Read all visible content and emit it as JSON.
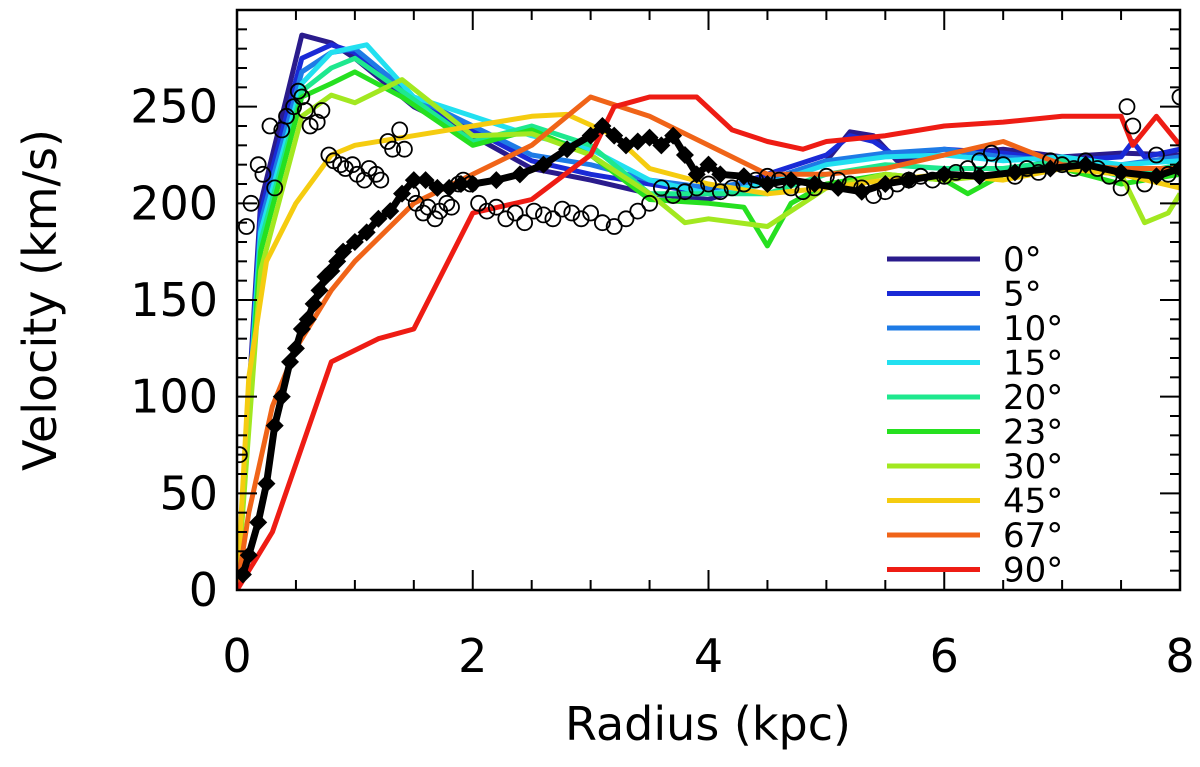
{
  "chart_data": {
    "type": "line",
    "title": "",
    "xlabel": "Radius (kpc)",
    "ylabel": "Velocity (km/s)",
    "xlim": [
      0,
      8
    ],
    "ylim": [
      0,
      300
    ],
    "x_ticks": [
      0,
      2,
      4,
      6,
      8
    ],
    "x_tick_labels": [
      "0",
      "2",
      "4",
      "6",
      "8"
    ],
    "y_ticks": [
      0,
      50,
      100,
      150,
      200,
      250
    ],
    "y_tick_labels": [
      "0",
      "50",
      "100",
      "150",
      "200",
      "250"
    ],
    "grid": false,
    "legend_position": "bottom-right",
    "series": [
      {
        "name": "0°",
        "color": "#2a1b8c",
        "x": [
          0,
          0.2,
          0.55,
          0.8,
          1.0,
          1.5,
          2.0,
          2.5,
          3.0,
          3.5,
          4.0,
          4.5,
          5.0,
          5.2,
          5.4,
          5.6,
          6.0,
          6.5,
          7.0,
          7.5,
          8.0
        ],
        "y": [
          0,
          200,
          287,
          283,
          275,
          250,
          235,
          218,
          212,
          205,
          202,
          212,
          222,
          237,
          235,
          222,
          225,
          228,
          224,
          226,
          225
        ]
      },
      {
        "name": "5°",
        "color": "#1a2ad6",
        "x": [
          0,
          0.2,
          0.55,
          0.8,
          1.0,
          1.5,
          2.0,
          2.5,
          3.0,
          3.5,
          4.0,
          4.5,
          5.0,
          5.2,
          5.4,
          5.6,
          6.0,
          6.5,
          7.0,
          7.5,
          7.6,
          7.7,
          8.0
        ],
        "y": [
          0,
          195,
          275,
          282,
          278,
          252,
          238,
          222,
          215,
          210,
          205,
          215,
          225,
          235,
          232,
          224,
          228,
          226,
          222,
          224,
          232,
          224,
          228
        ]
      },
      {
        "name": "10°",
        "color": "#1e7be6",
        "x": [
          0,
          0.2,
          0.55,
          0.8,
          1.0,
          1.5,
          2.0,
          2.5,
          3.0,
          3.5,
          4.0,
          4.5,
          5.0,
          5.5,
          6.0,
          6.5,
          7.0,
          7.5,
          8.0
        ],
        "y": [
          0,
          190,
          268,
          278,
          280,
          255,
          240,
          225,
          220,
          212,
          208,
          212,
          222,
          226,
          228,
          224,
          222,
          220,
          224
        ]
      },
      {
        "name": "15°",
        "color": "#22e0f0",
        "x": [
          0,
          0.2,
          0.55,
          0.8,
          1.1,
          1.5,
          2.0,
          2.5,
          3.0,
          3.5,
          4.0,
          4.5,
          5.0,
          5.5,
          6.0,
          6.5,
          7.0,
          7.5,
          8.0
        ],
        "y": [
          0,
          185,
          262,
          278,
          282,
          255,
          245,
          235,
          228,
          212,
          205,
          210,
          220,
          224,
          225,
          222,
          224,
          220,
          222
        ]
      },
      {
        "name": "20°",
        "color": "#1ee88e",
        "x": [
          0,
          0.2,
          0.55,
          0.8,
          1.0,
          1.4,
          2.0,
          2.5,
          3.0,
          3.5,
          4.0,
          4.5,
          5.0,
          5.5,
          6.0,
          6.5,
          7.0,
          7.5,
          8.0
        ],
        "y": [
          0,
          180,
          258,
          270,
          275,
          258,
          232,
          240,
          230,
          205,
          205,
          205,
          215,
          220,
          218,
          218,
          222,
          214,
          220
        ]
      },
      {
        "name": "23°",
        "color": "#26e020",
        "x": [
          0,
          0.2,
          0.55,
          0.8,
          1.0,
          1.4,
          2.0,
          2.5,
          3.0,
          3.5,
          4.0,
          4.3,
          4.5,
          4.7,
          5.0,
          5.5,
          6.0,
          6.2,
          6.5,
          7.0,
          7.5,
          8.0
        ],
        "y": [
          0,
          175,
          255,
          262,
          268,
          255,
          230,
          238,
          225,
          202,
          200,
          198,
          178,
          200,
          210,
          215,
          212,
          205,
          215,
          218,
          210,
          215
        ]
      },
      {
        "name": "30°",
        "color": "#a2e820",
        "x": [
          0,
          0.2,
          0.55,
          0.8,
          1.0,
          1.4,
          2.0,
          2.5,
          3.0,
          3.5,
          3.8,
          4.0,
          4.5,
          5.0,
          5.5,
          6.0,
          6.5,
          7.0,
          7.5,
          7.7,
          7.9,
          8.0
        ],
        "y": [
          0,
          165,
          245,
          256,
          252,
          264,
          235,
          236,
          225,
          205,
          190,
          192,
          188,
          208,
          215,
          212,
          215,
          218,
          215,
          190,
          195,
          205
        ]
      },
      {
        "name": "45°",
        "color": "#f5cc10",
        "x": [
          0,
          0.1,
          0.25,
          0.5,
          0.8,
          1.0,
          1.5,
          2.0,
          2.5,
          2.8,
          3.2,
          3.5,
          4.0,
          4.5,
          5.0,
          5.5,
          6.0,
          6.5,
          7.0,
          7.5,
          8.0
        ],
        "y": [
          0,
          110,
          170,
          200,
          225,
          230,
          235,
          240,
          245,
          246,
          235,
          218,
          210,
          205,
          208,
          212,
          215,
          212,
          218,
          215,
          208
        ]
      },
      {
        "name": "67°",
        "color": "#f06418",
        "x": [
          0,
          0.1,
          0.3,
          0.5,
          0.8,
          1.0,
          1.5,
          2.0,
          2.5,
          3.0,
          3.5,
          4.0,
          4.5,
          5.0,
          5.5,
          6.0,
          6.5,
          7.0,
          7.5,
          8.0
        ],
        "y": [
          0,
          40,
          95,
          125,
          155,
          170,
          200,
          215,
          230,
          255,
          245,
          230,
          215,
          215,
          218,
          225,
          232,
          220,
          218,
          218
        ]
      },
      {
        "name": "90°",
        "color": "#ee1c14",
        "x": [
          0,
          0.3,
          0.8,
          1.2,
          1.5,
          2.0,
          2.5,
          3.0,
          3.2,
          3.5,
          3.9,
          4.2,
          4.5,
          4.8,
          5.0,
          5.5,
          6.0,
          6.5,
          7.0,
          7.5,
          7.6,
          7.8,
          8.0
        ],
        "y": [
          0,
          30,
          118,
          130,
          135,
          195,
          202,
          225,
          250,
          255,
          255,
          238,
          232,
          228,
          232,
          235,
          240,
          242,
          245,
          245,
          230,
          245,
          230
        ]
      }
    ],
    "diamond_series": {
      "color": "#000000",
      "x": [
        0.05,
        0.1,
        0.18,
        0.25,
        0.32,
        0.38,
        0.45,
        0.5,
        0.55,
        0.6,
        0.65,
        0.7,
        0.75,
        0.8,
        0.85,
        0.9,
        1.0,
        1.1,
        1.2,
        1.3,
        1.4,
        1.5,
        1.6,
        1.7,
        1.8,
        1.9,
        2.0,
        2.2,
        2.4,
        2.6,
        2.8,
        3.0,
        3.1,
        3.2,
        3.3,
        3.4,
        3.5,
        3.6,
        3.7,
        3.8,
        3.9,
        4.0,
        4.1,
        4.3,
        4.5,
        4.7,
        4.9,
        5.1,
        5.3,
        5.5,
        5.7,
        6.0,
        6.3,
        6.6,
        6.9,
        7.2,
        7.5,
        7.8,
        8.0
      ],
      "y": [
        8,
        18,
        35,
        55,
        85,
        100,
        118,
        125,
        135,
        140,
        148,
        155,
        162,
        165,
        170,
        175,
        180,
        185,
        192,
        196,
        205,
        212,
        212,
        208,
        208,
        210,
        210,
        212,
        215,
        220,
        228,
        235,
        240,
        235,
        230,
        232,
        234,
        230,
        235,
        225,
        215,
        220,
        215,
        214,
        210,
        212,
        210,
        208,
        206,
        210,
        212,
        215,
        214,
        216,
        218,
        220,
        216,
        214,
        218
      ]
    },
    "circle_series": {
      "color": "#000000",
      "x": [
        0.02,
        0.08,
        0.12,
        0.18,
        0.22,
        0.28,
        0.32,
        0.38,
        0.42,
        0.48,
        0.52,
        0.55,
        0.58,
        0.62,
        0.68,
        0.72,
        0.78,
        0.82,
        0.88,
        0.92,
        0.98,
        1.02,
        1.08,
        1.12,
        1.18,
        1.22,
        1.28,
        1.32,
        1.38,
        1.42,
        1.48,
        1.52,
        1.58,
        1.62,
        1.68,
        1.72,
        1.78,
        1.82,
        1.88,
        1.92,
        1.98,
        2.05,
        2.12,
        2.2,
        2.28,
        2.36,
        2.44,
        2.52,
        2.6,
        2.68,
        2.76,
        2.84,
        2.92,
        3.0,
        3.1,
        3.2,
        3.3,
        3.4,
        3.5,
        3.6,
        3.7,
        3.8,
        3.9,
        4.0,
        4.1,
        4.2,
        4.3,
        4.4,
        4.5,
        4.6,
        4.7,
        4.8,
        4.9,
        5.0,
        5.1,
        5.2,
        5.3,
        5.4,
        5.5,
        5.6,
        5.7,
        5.8,
        5.9,
        6.0,
        6.1,
        6.2,
        6.3,
        6.4,
        6.5,
        6.6,
        6.7,
        6.8,
        6.9,
        7.0,
        7.1,
        7.2,
        7.3,
        7.4,
        7.5,
        7.55,
        7.6,
        7.7,
        7.8,
        7.9,
        8.0
      ],
      "y": [
        70,
        188,
        200,
        220,
        215,
        240,
        208,
        238,
        245,
        250,
        258,
        255,
        248,
        240,
        242,
        248,
        225,
        222,
        220,
        218,
        220,
        215,
        212,
        218,
        215,
        212,
        232,
        228,
        238,
        228,
        205,
        200,
        195,
        198,
        192,
        196,
        200,
        198,
        210,
        212,
        210,
        200,
        196,
        198,
        192,
        195,
        190,
        196,
        194,
        192,
        197,
        195,
        192,
        195,
        190,
        188,
        192,
        196,
        200,
        208,
        204,
        206,
        208,
        210,
        206,
        208,
        210,
        212,
        214,
        212,
        208,
        206,
        208,
        214,
        212,
        210,
        208,
        204,
        206,
        210,
        212,
        214,
        212,
        214,
        216,
        218,
        222,
        226,
        220,
        214,
        218,
        216,
        222,
        220,
        218,
        222,
        218,
        214,
        208,
        250,
        240,
        210,
        225,
        215,
        255
      ]
    }
  }
}
